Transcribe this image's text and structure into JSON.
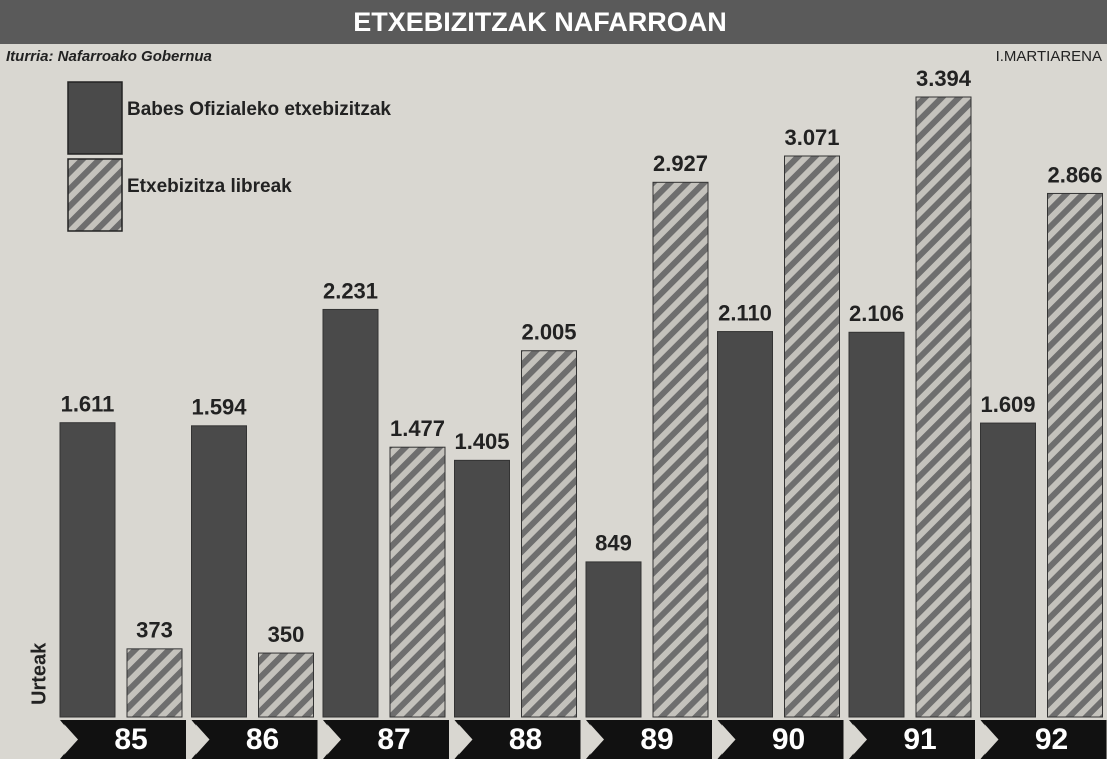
{
  "chart_data": {
    "type": "bar",
    "title": "ETXEBIZITZAK NAFARROAN",
    "subtitle": "Iturria: Nafarroako Gobernua",
    "author": "I.MARTIARENA",
    "x_label": "Urteak",
    "categories": [
      "85",
      "86",
      "87",
      "88",
      "89",
      "90",
      "91",
      "92"
    ],
    "series": [
      {
        "name": "Babes Ofizialeko etxebizitzak",
        "color": "#4a4a4a",
        "values": [
          1611,
          1594,
          2231,
          1405,
          849,
          2110,
          2106,
          1609
        ],
        "value_labels": [
          "1.611",
          "1.594",
          "2.231",
          "1.405",
          "849",
          "2.110",
          "2.106",
          "1.609"
        ]
      },
      {
        "name": "Etxebizitza libreak",
        "color": "#6e6e6e",
        "values": [
          373,
          350,
          1477,
          2005,
          2927,
          3071,
          3394,
          2866
        ],
        "value_labels": [
          "373",
          "350",
          "1.477",
          "2.005",
          "2.927",
          "3.071",
          "3.394",
          "2.866"
        ]
      }
    ]
  }
}
